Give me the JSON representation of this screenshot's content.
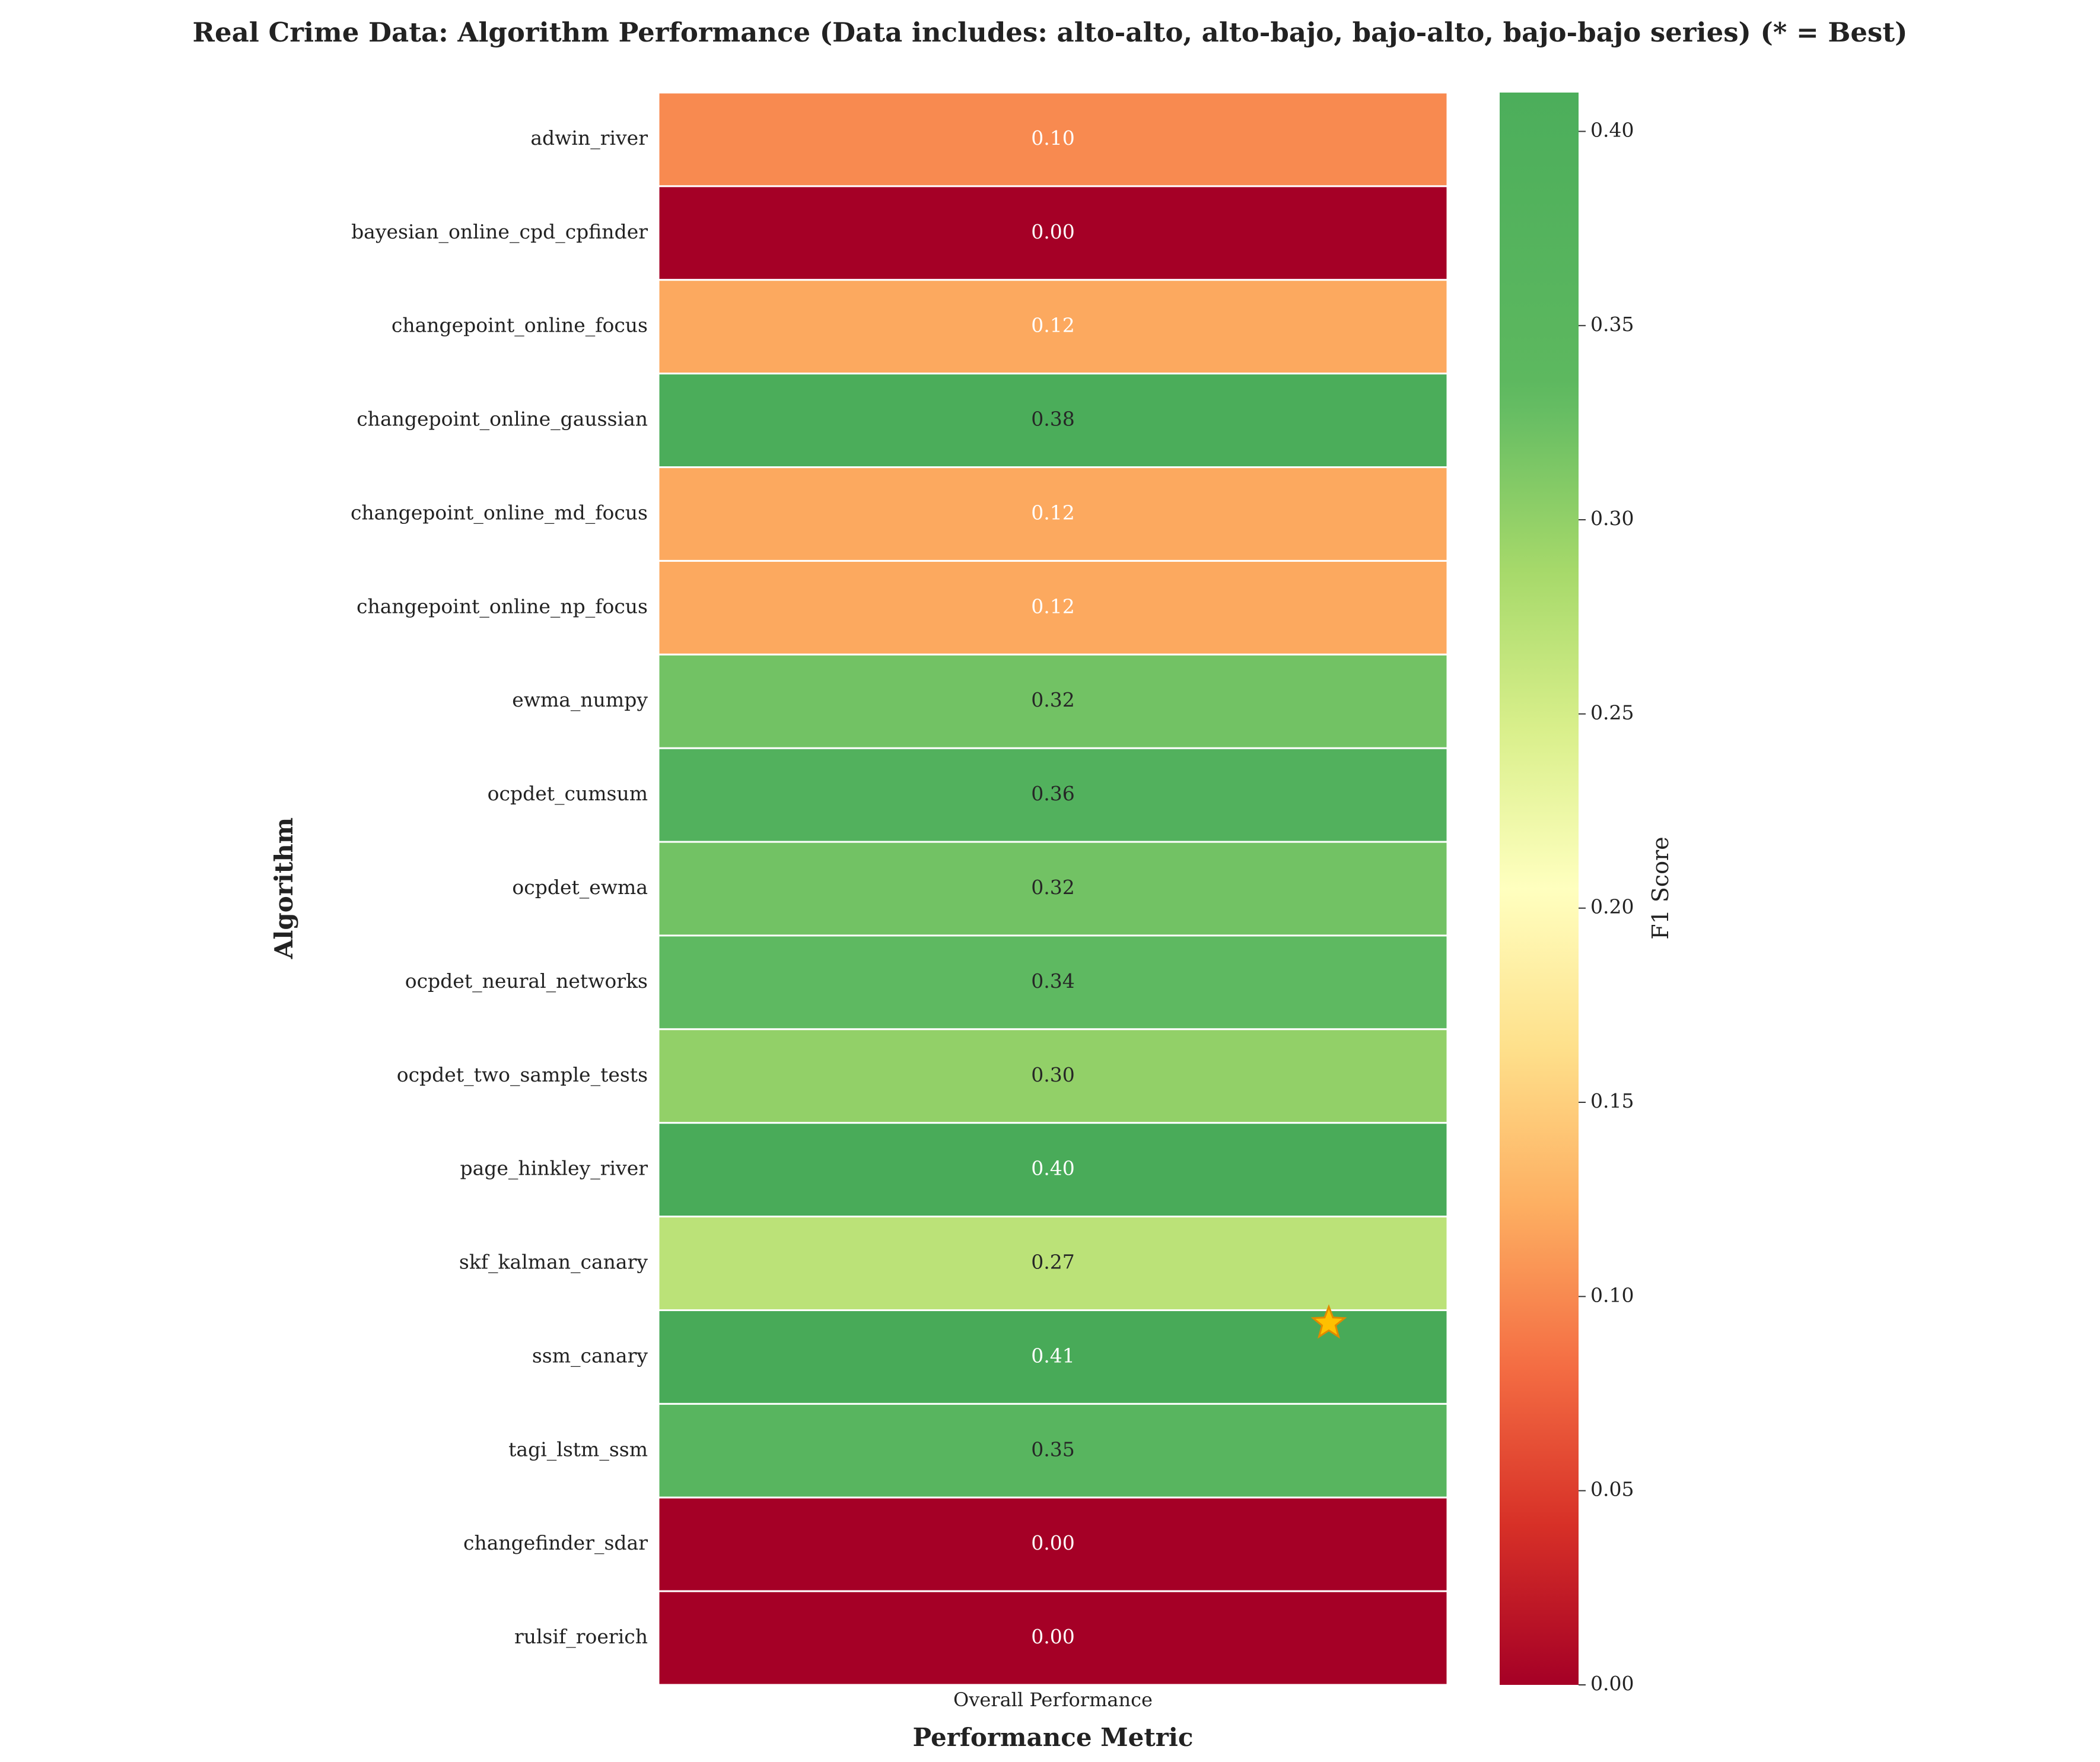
{
  "chart_data": {
    "type": "heatmap",
    "title": "Real Crime Data: Algorithm Performance (Data includes: alto-alto, alto-bajo, bajo-alto, bajo-bajo series) (* = Best)",
    "xlabel": "Performance Metric",
    "ylabel": "Algorithm",
    "columns": [
      "Overall Performance"
    ],
    "rows": [
      "adwin_river",
      "bayesian_online_cpd_cpfinder",
      "changepoint_online_focus",
      "changepoint_online_gaussian",
      "changepoint_online_md_focus",
      "changepoint_online_np_focus",
      "ewma_numpy",
      "ocpdet_cumsum",
      "ocpdet_ewma",
      "ocpdet_neural_networks",
      "ocpdet_two_sample_tests",
      "page_hinkley_river",
      "skf_kalman_canary",
      "ssm_canary",
      "tagi_lstm_ssm",
      "changefinder_sdar",
      "rulsif_roerich"
    ],
    "values": [
      0.1,
      0.0,
      0.12,
      0.38,
      0.12,
      0.12,
      0.32,
      0.36,
      0.32,
      0.34,
      0.3,
      0.4,
      0.27,
      0.41,
      0.35,
      0.0,
      0.0
    ],
    "labels": [
      "0.10",
      "0.00",
      "0.12",
      "0.38",
      "0.12",
      "0.12",
      "0.32",
      "0.36",
      "0.32",
      "0.34",
      "0.30",
      "0.40",
      "0.27",
      "0.41",
      "0.35",
      "0.00",
      "0.00"
    ],
    "best_index": 13,
    "best_marker": "star-icon",
    "colormap": "RdYlGn",
    "colorbar": {
      "label": "F1 Score",
      "range": [
        0,
        0.41
      ],
      "ticks": [
        "0.00",
        "0.05",
        "0.10",
        "0.15",
        "0.20",
        "0.25",
        "0.30",
        "0.35",
        "0.40"
      ]
    },
    "star_color": "#FFC000"
  }
}
